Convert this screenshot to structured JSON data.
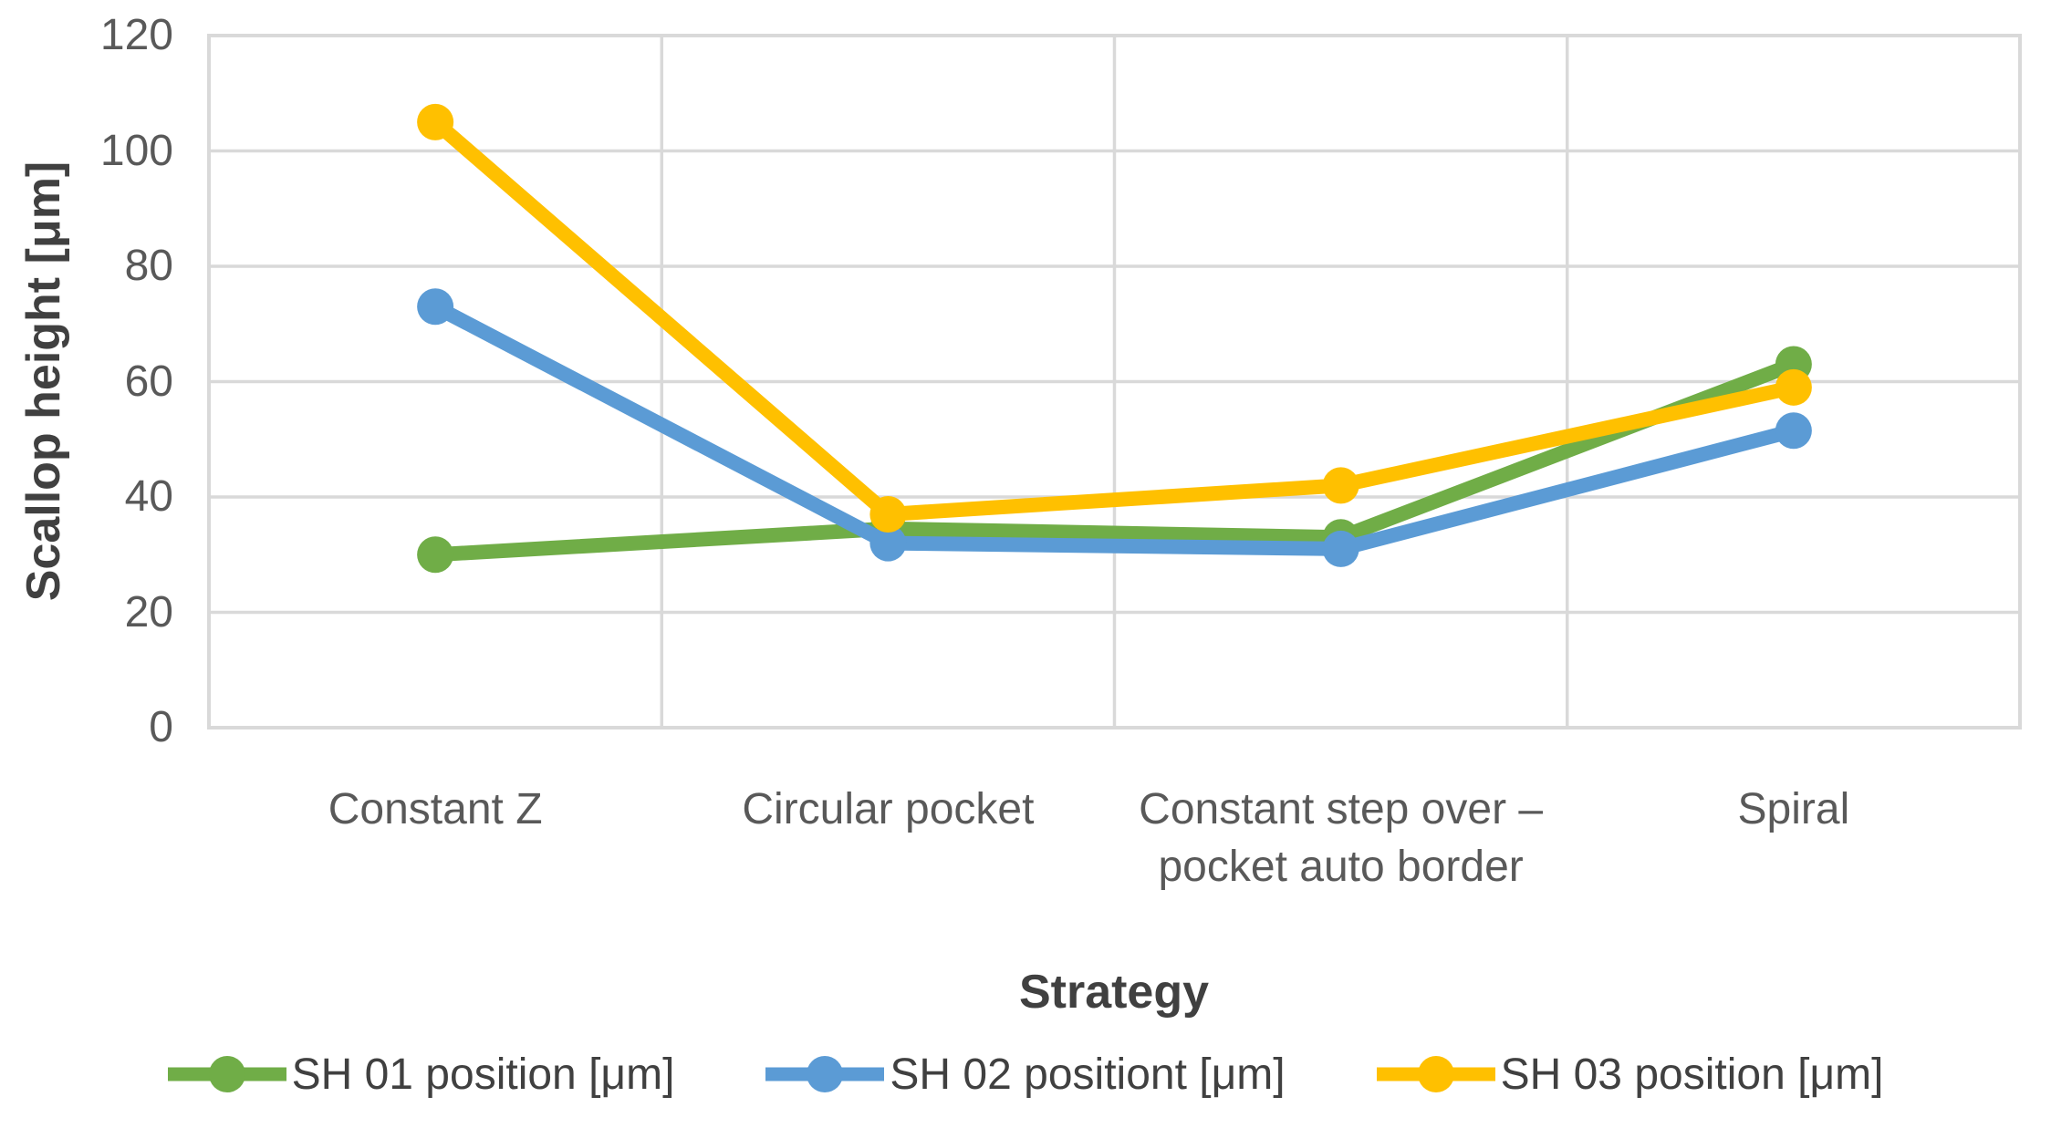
{
  "chart_data": {
    "type": "line",
    "title": "",
    "xlabel": "Strategy",
    "ylabel": "Scallop height [μm]",
    "categories": [
      "Constant Z",
      "Circular pocket",
      "Constant step over – pocket auto border",
      "Spiral"
    ],
    "series": [
      {
        "name": "SH 01 position [μm]",
        "color": "#70AD47",
        "values": [
          30,
          34.5,
          33,
          63
        ]
      },
      {
        "name": "SH 02 positiont [μm]",
        "color": "#5B9BD5",
        "values": [
          73,
          32,
          31,
          51.5
        ]
      },
      {
        "name": "SH 03 position [μm]",
        "color": "#FFC000",
        "values": [
          105,
          37,
          42,
          59
        ]
      }
    ],
    "y_ticks": [
      0,
      20,
      40,
      60,
      80,
      100,
      120
    ],
    "ylim": [
      0,
      120
    ],
    "grid": true,
    "legend_position": "bottom"
  },
  "colors": {
    "gridline": "#D9D9D9",
    "tick_text": "#595959",
    "title_text": "#404040",
    "background": "#FFFFFF"
  }
}
